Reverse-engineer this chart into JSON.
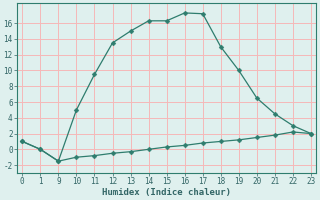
{
  "xlabel": "Humidex (Indice chaleur)",
  "x_indices": [
    0,
    1,
    2,
    3,
    4,
    5,
    6,
    7,
    8,
    9,
    10,
    11,
    12,
    13,
    14,
    15,
    16
  ],
  "x_labels": [
    "0",
    "1",
    "9",
    "10",
    "11",
    "12",
    "13",
    "14",
    "15",
    "16",
    "17",
    "18",
    "19",
    "20",
    "21",
    "22",
    "23"
  ],
  "y_main": [
    1,
    0,
    -1.5,
    5.0,
    9.5,
    13.5,
    15.0,
    16.3,
    16.3,
    17.3,
    17.2,
    13.0,
    10.0,
    6.5,
    4.5,
    3.0,
    2.0
  ],
  "y_lower": [
    1,
    0,
    -1.5,
    -1.0,
    -0.8,
    -0.5,
    -0.3,
    0.0,
    0.3,
    0.5,
    0.8,
    1.0,
    1.2,
    1.5,
    1.8,
    2.2,
    2.0
  ],
  "line_color": "#2e7d6e",
  "marker": "D",
  "marker_size": 2.5,
  "background_color": "#dff0ee",
  "grid_color": "#f5b8b8",
  "ylim": [
    -3,
    18.5
  ],
  "xlim": [
    -0.3,
    16.3
  ],
  "yticks": [
    -2,
    0,
    2,
    4,
    6,
    8,
    10,
    12,
    14,
    16
  ],
  "tick_fontsize": 5.5,
  "xlabel_fontsize": 6.5,
  "label_color": "#336666"
}
